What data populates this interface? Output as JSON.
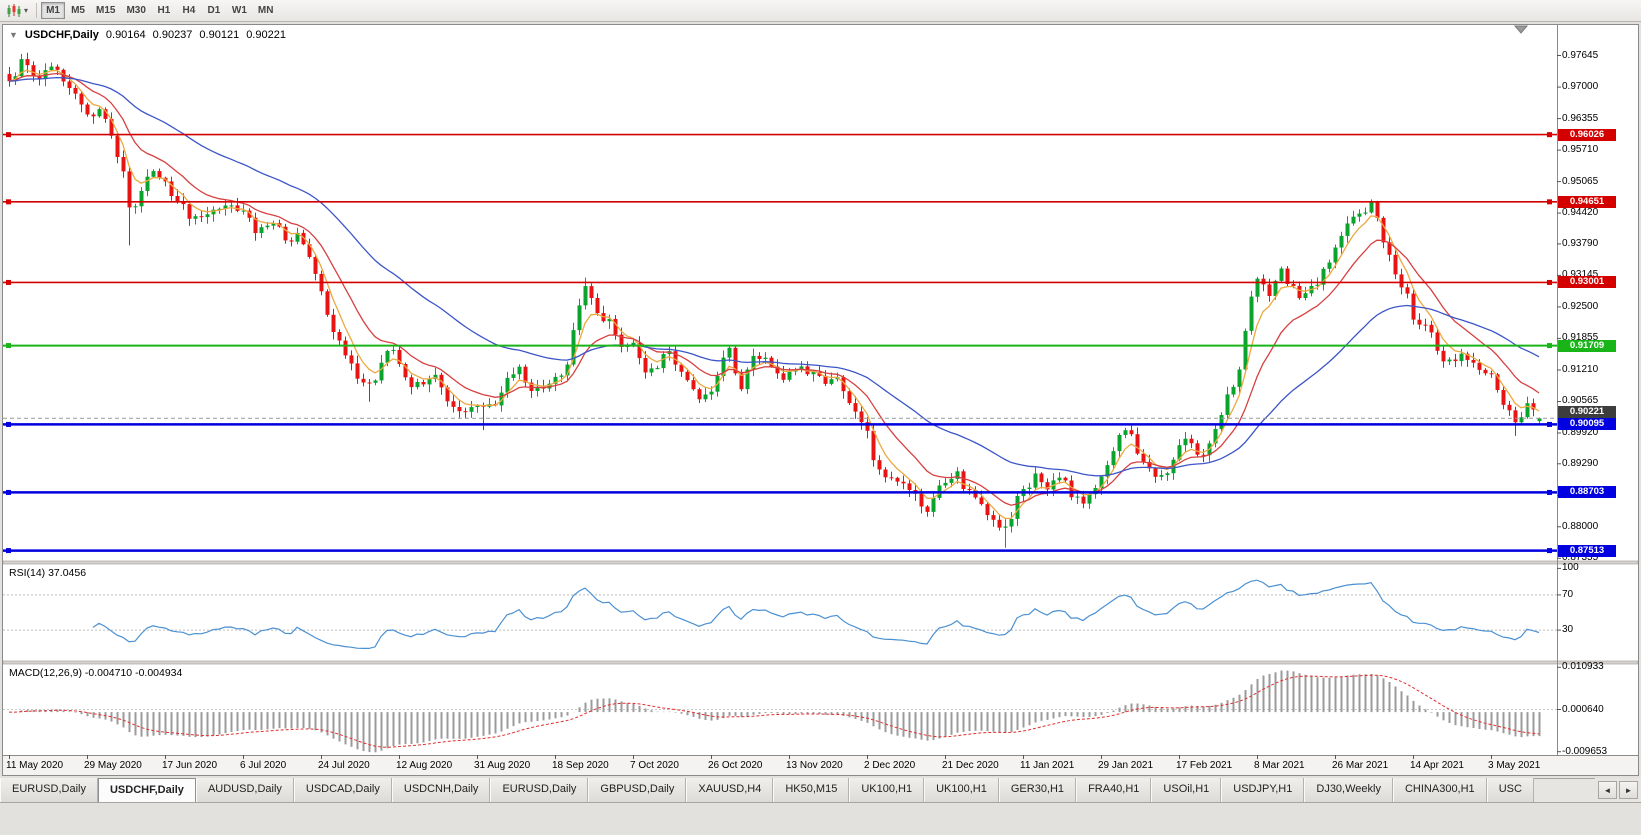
{
  "toolbar": {
    "chart_type_icon": "candlestick-chart-icon",
    "dropdown_caret": "▾",
    "timeframes": [
      {
        "label": "M1",
        "active": true
      },
      {
        "label": "M5",
        "active": false
      },
      {
        "label": "M15",
        "active": false
      },
      {
        "label": "M30",
        "active": false
      },
      {
        "label": "H1",
        "active": false
      },
      {
        "label": "H4",
        "active": false
      },
      {
        "label": "D1",
        "active": false
      },
      {
        "label": "W1",
        "active": false
      },
      {
        "label": "MN",
        "active": false
      }
    ]
  },
  "chart_header": {
    "collapse_icon": "▼",
    "symbol": "USDCHF,Daily",
    "open": "0.90164",
    "high": "0.90237",
    "low": "0.90121",
    "close": "0.90221"
  },
  "main_chart": {
    "current_price_label": "0.90221",
    "price_axis_labels": [
      "0.97645",
      "0.97000",
      "0.96355",
      "0.95710",
      "0.95065",
      "0.94420",
      "0.93790",
      "0.93145",
      "0.92500",
      "0.91855",
      "0.91210",
      "0.90565",
      "0.89920",
      "0.89290",
      "0.88645",
      "0.88000",
      "0.87355"
    ]
  },
  "rsi_panel": {
    "label": "RSI(14) 37.0456",
    "scale_labels": [
      "100",
      "70",
      "30"
    ]
  },
  "macd_panel": {
    "label": "MACD(12,26,9) -0.004710 -0.004934",
    "scale_labels": [
      "0.010933",
      "0.000640",
      "-0.009653"
    ]
  },
  "date_axis": {
    "labels": [
      "11 May 2020",
      "29 May 2020",
      "17 Jun 2020",
      "6 Jul 2020",
      "24 Jul 2020",
      "12 Aug 2020",
      "31 Aug 2020",
      "18 Sep 2020",
      "7 Oct 2020",
      "26 Oct 2020",
      "13 Nov 2020",
      "2 Dec 2020",
      "21 Dec 2020",
      "11 Jan 2021",
      "29 Jan 2021",
      "17 Feb 2021",
      "8 Mar 2021",
      "26 Mar 2021",
      "14 Apr 2021",
      "3 May 2021"
    ]
  },
  "tabs": {
    "active_index": 1,
    "scroll_left": "◄",
    "scroll_right": "►",
    "items": [
      "EURUSD,Daily",
      "USDCHF,Daily",
      "AUDUSD,Daily",
      "USDCAD,Daily",
      "USDCNH,Daily",
      "EURUSD,Daily",
      "GBPUSD,Daily",
      "XAUUSD,H4",
      "HK50,M15",
      "UK100,H1",
      "UK100,H1",
      "GER30,H1",
      "FRA40,H1",
      "USOil,H1",
      "USDJPY,H1",
      "DJ30,Weekly",
      "CHINA300,H1",
      "USC"
    ]
  },
  "chart_data": {
    "type": "candlestick",
    "symbol": "USDCHF",
    "timeframe": "Daily",
    "bar_count": 256,
    "date_ticks_interval": 13,
    "ohlc_current": {
      "open": 0.90164,
      "high": 0.90237,
      "low": 0.90121,
      "close": 0.90221
    },
    "current_price": 0.90221,
    "up_color": "#09a32e",
    "down_color": "#e81414",
    "price_axis": {
      "top_price": 0.9827,
      "bottom_price": 0.873
    },
    "horizontal_lines": [
      {
        "price": 0.96026,
        "label": "0.96026",
        "color": "#d40000",
        "width": 1.6,
        "kind": "resistance"
      },
      {
        "price": 0.94651,
        "label": "0.94651",
        "color": "#d40000",
        "width": 1.6,
        "kind": "resistance"
      },
      {
        "price": 0.93001,
        "label": "0.93001",
        "color": "#d40000",
        "width": 1.6,
        "kind": "resistance"
      },
      {
        "price": 0.91709,
        "label": "0.91709",
        "color": "#18b418",
        "width": 2,
        "kind": "pivot"
      },
      {
        "price": 0.90095,
        "label": "0.90095",
        "color": "#0000e0",
        "width": 2.5,
        "kind": "support"
      },
      {
        "price": 0.88703,
        "label": "0.88703",
        "color": "#0000e0",
        "width": 2.5,
        "kind": "support"
      },
      {
        "price": 0.87513,
        "label": "0.87513",
        "color": "#0000e0",
        "width": 2.5,
        "kind": "support"
      }
    ],
    "moving_averages": [
      {
        "name": "ma-fast",
        "period": 5,
        "color": "#eca940"
      },
      {
        "name": "ma-mid",
        "period": 13,
        "color": "#d84040"
      },
      {
        "name": "ma-slow",
        "period": 40,
        "color": "#3c55c8"
      }
    ],
    "rsi": {
      "period": 14,
      "current": 37.0456,
      "color": "#4a90d2",
      "levels": [
        70,
        30
      ]
    },
    "macd": {
      "fast": 12,
      "slow": 26,
      "signal_period": 9,
      "current_macd": -0.00471,
      "current_signal": -0.004934,
      "scale_max": 0.010933,
      "scale_mid": 0.00064,
      "scale_min": -0.009653,
      "hist_color": "#9b9b9b",
      "signal_color": "#e03030"
    },
    "price_anchors": [
      [
        0,
        0.9712
      ],
      [
        2,
        0.9745
      ],
      [
        5,
        0.9722
      ],
      [
        8,
        0.9741
      ],
      [
        11,
        0.969
      ],
      [
        13,
        0.9642
      ],
      [
        15,
        0.9655
      ],
      [
        17,
        0.9598
      ],
      [
        19,
        0.952
      ],
      [
        20,
        0.9445
      ],
      [
        22,
        0.949
      ],
      [
        24,
        0.953
      ],
      [
        26,
        0.95
      ],
      [
        28,
        0.9465
      ],
      [
        31,
        0.9425
      ],
      [
        34,
        0.9455
      ],
      [
        37,
        0.947
      ],
      [
        39,
        0.944
      ],
      [
        41,
        0.9405
      ],
      [
        44,
        0.943
      ],
      [
        46,
        0.939
      ],
      [
        48,
        0.9395
      ],
      [
        50,
        0.9345
      ],
      [
        52,
        0.927
      ],
      [
        54,
        0.9205
      ],
      [
        56,
        0.9155
      ],
      [
        58,
        0.911
      ],
      [
        60,
        0.9085
      ],
      [
        62,
        0.913
      ],
      [
        64,
        0.9165
      ],
      [
        65,
        0.9135
      ],
      [
        67,
        0.9095
      ],
      [
        69,
        0.908
      ],
      [
        71,
        0.9105
      ],
      [
        73,
        0.906
      ],
      [
        75,
        0.9035
      ],
      [
        77,
        0.9045
      ],
      [
        79,
        0.9035
      ],
      [
        81,
        0.906
      ],
      [
        83,
        0.9095
      ],
      [
        85,
        0.913
      ],
      [
        87,
        0.9085
      ],
      [
        89,
        0.9075
      ],
      [
        91,
        0.9095
      ],
      [
        93,
        0.913
      ],
      [
        95,
        0.925
      ],
      [
        96,
        0.93
      ],
      [
        98,
        0.924
      ],
      [
        100,
        0.9215
      ],
      [
        102,
        0.918
      ],
      [
        104,
        0.9165
      ],
      [
        106,
        0.9105
      ],
      [
        108,
        0.913
      ],
      [
        110,
        0.9155
      ],
      [
        112,
        0.913
      ],
      [
        114,
        0.9075
      ],
      [
        116,
        0.906
      ],
      [
        118,
        0.9115
      ],
      [
        120,
        0.916
      ],
      [
        122,
        0.908
      ],
      [
        124,
        0.914
      ],
      [
        126,
        0.9145
      ],
      [
        128,
        0.912
      ],
      [
        130,
        0.9105
      ],
      [
        132,
        0.912
      ],
      [
        134,
        0.9115
      ],
      [
        136,
        0.9085
      ],
      [
        138,
        0.9105
      ],
      [
        140,
        0.906
      ],
      [
        142,
        0.901
      ],
      [
        143,
        0.8985
      ],
      [
        145,
        0.8905
      ],
      [
        147,
        0.8895
      ],
      [
        149,
        0.888
      ],
      [
        151,
        0.8855
      ],
      [
        153,
        0.884
      ],
      [
        155,
        0.8885
      ],
      [
        156,
        0.8895
      ],
      [
        158,
        0.8905
      ],
      [
        160,
        0.887
      ],
      [
        162,
        0.885
      ],
      [
        164,
        0.8815
      ],
      [
        166,
        0.879
      ],
      [
        168,
        0.885
      ],
      [
        169,
        0.888
      ],
      [
        171,
        0.89
      ],
      [
        173,
        0.888
      ],
      [
        175,
        0.89
      ],
      [
        177,
        0.887
      ],
      [
        179,
        0.8855
      ],
      [
        181,
        0.8885
      ],
      [
        182,
        0.889
      ],
      [
        184,
        0.895
      ],
      [
        186,
        0.9
      ],
      [
        188,
        0.896
      ],
      [
        190,
        0.8925
      ],
      [
        192,
        0.8905
      ],
      [
        194,
        0.893
      ],
      [
        195,
        0.896
      ],
      [
        197,
        0.8975
      ],
      [
        199,
        0.8935
      ],
      [
        201,
        0.901
      ],
      [
        203,
        0.906
      ],
      [
        205,
        0.9125
      ],
      [
        207,
        0.927
      ],
      [
        208,
        0.93
      ],
      [
        210,
        0.9285
      ],
      [
        212,
        0.932
      ],
      [
        214,
        0.929
      ],
      [
        216,
        0.927
      ],
      [
        218,
        0.9305
      ],
      [
        220,
        0.934
      ],
      [
        221,
        0.936
      ],
      [
        223,
        0.941
      ],
      [
        225,
        0.944
      ],
      [
        227,
        0.9455
      ],
      [
        229,
        0.9395
      ],
      [
        231,
        0.932
      ],
      [
        233,
        0.927
      ],
      [
        234,
        0.9235
      ],
      [
        236,
        0.9205
      ],
      [
        238,
        0.9165
      ],
      [
        240,
        0.9135
      ],
      [
        242,
        0.916
      ],
      [
        244,
        0.9125
      ],
      [
        246,
        0.9105
      ],
      [
        247,
        0.9115
      ],
      [
        249,
        0.906
      ],
      [
        251,
        0.901
      ],
      [
        252,
        0.9025
      ],
      [
        253,
        0.904
      ],
      [
        254,
        0.903
      ],
      [
        255,
        0.90221
      ]
    ],
    "wick_extremes": [
      {
        "i": 20,
        "low": 0.9376
      },
      {
        "i": 60,
        "low": 0.9056
      },
      {
        "i": 79,
        "low": 0.8998
      },
      {
        "i": 96,
        "high": 0.931
      },
      {
        "i": 153,
        "low": 0.883
      },
      {
        "i": 166,
        "low": 0.8757
      },
      {
        "i": 227,
        "high": 0.9465
      },
      {
        "i": 251,
        "low": 0.8986
      }
    ]
  }
}
